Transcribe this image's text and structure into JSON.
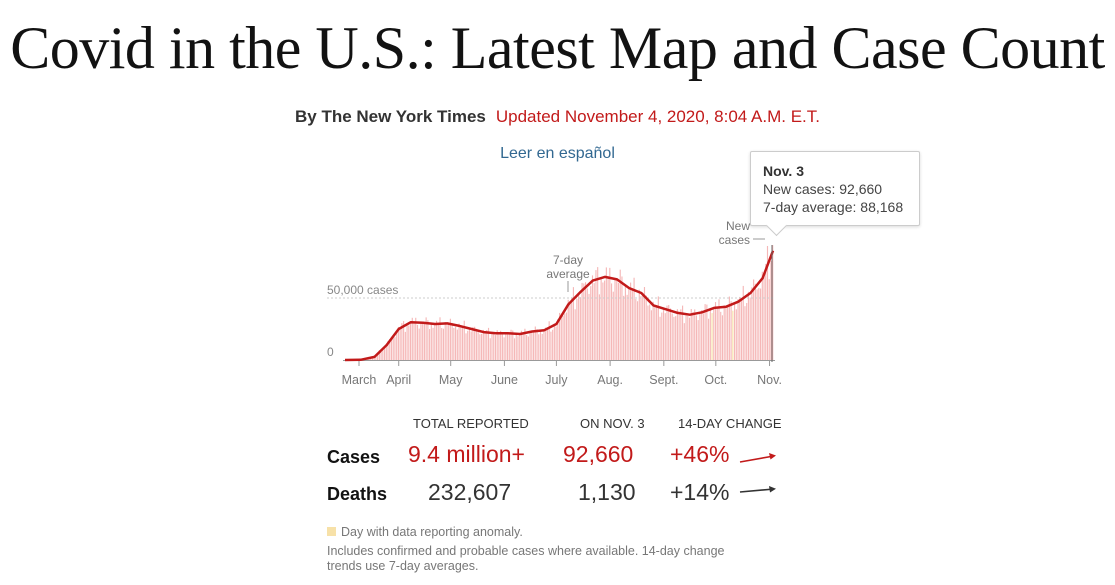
{
  "headline": "Covid in the U.S.: Latest Map and Case Count",
  "byline": {
    "author": "By The New York Times",
    "updated": "Updated November 4, 2020, 8:04 A.M. E.T."
  },
  "spanish_link": "Leer en español",
  "tooltip": {
    "date": "Nov. 3",
    "new_cases": "New cases: 92,660",
    "avg": "7-day average: 88,168"
  },
  "chart_data": {
    "type": "bar",
    "title": "",
    "xlabel": "",
    "ylabel": "",
    "x_ticks": [
      "March",
      "April",
      "May",
      "June",
      "July",
      "Aug.",
      "Sept.",
      "Oct.",
      "Nov."
    ],
    "y_ticks": [
      {
        "value": 0,
        "label": "0"
      },
      {
        "value": 50000,
        "label": "50,000 cases"
      }
    ],
    "ylim": [
      0,
      100000
    ],
    "annotations": {
      "daily_label_1": "New",
      "daily_label_2": "cases",
      "avg_label_1": "7-day",
      "avg_label_2": "average"
    },
    "series": [
      {
        "name": "New cases",
        "kind": "daily bars",
        "color": "#f5b7b7"
      },
      {
        "name": "7-day average",
        "kind": "line",
        "color": "#c21a1a"
      }
    ],
    "avg_points": [
      [
        "2020-03-01",
        0
      ],
      [
        "2020-03-10",
        200
      ],
      [
        "2020-03-18",
        2500
      ],
      [
        "2020-03-25",
        12000
      ],
      [
        "2020-04-01",
        25000
      ],
      [
        "2020-04-08",
        30500
      ],
      [
        "2020-04-15",
        30000
      ],
      [
        "2020-04-22",
        29000
      ],
      [
        "2020-04-29",
        29500
      ],
      [
        "2020-05-06",
        27500
      ],
      [
        "2020-05-13",
        25000
      ],
      [
        "2020-05-20",
        22500
      ],
      [
        "2020-05-27",
        21500
      ],
      [
        "2020-06-03",
        21500
      ],
      [
        "2020-06-10",
        21000
      ],
      [
        "2020-06-17",
        23000
      ],
      [
        "2020-06-24",
        24000
      ],
      [
        "2020-07-01",
        29000
      ],
      [
        "2020-07-08",
        45000
      ],
      [
        "2020-07-15",
        55000
      ],
      [
        "2020-07-22",
        64000
      ],
      [
        "2020-07-29",
        67000
      ],
      [
        "2020-08-05",
        65000
      ],
      [
        "2020-08-12",
        58000
      ],
      [
        "2020-08-19",
        54000
      ],
      [
        "2020-08-26",
        44000
      ],
      [
        "2020-09-02",
        41000
      ],
      [
        "2020-09-09",
        38000
      ],
      [
        "2020-09-16",
        36500
      ],
      [
        "2020-09-23",
        38500
      ],
      [
        "2020-09-30",
        42000
      ],
      [
        "2020-10-07",
        43000
      ],
      [
        "2020-10-14",
        47000
      ],
      [
        "2020-10-21",
        54000
      ],
      [
        "2020-10-28",
        66000
      ],
      [
        "2020-11-03",
        88168
      ]
    ],
    "last_day": {
      "date": "2020-11-03",
      "new_cases": 92660,
      "avg": 88168
    }
  },
  "stats": {
    "headers": {
      "total": "TOTAL REPORTED",
      "day": "ON NOV. 3",
      "change": "14-DAY CHANGE"
    },
    "rows": [
      {
        "label": "Cases",
        "total": "9.4 million+",
        "day": "92,660",
        "change": "+46%",
        "change_value": 46,
        "color": "#c21a1a"
      },
      {
        "label": "Deaths",
        "total": "232,607",
        "day": "1,130",
        "change": "+14%",
        "change_value": 14,
        "color": "#333333"
      }
    ]
  },
  "notes": {
    "anomaly": "Day with data reporting anomaly.",
    "line1": "Includes confirmed and probable cases where available. 14-day change",
    "line2": "trends use 7-day averages."
  },
  "colors": {
    "accent": "#c21a1a",
    "bar": "#f5b7b7",
    "anomaly": "#f7e1a8",
    "link": "#326891"
  }
}
